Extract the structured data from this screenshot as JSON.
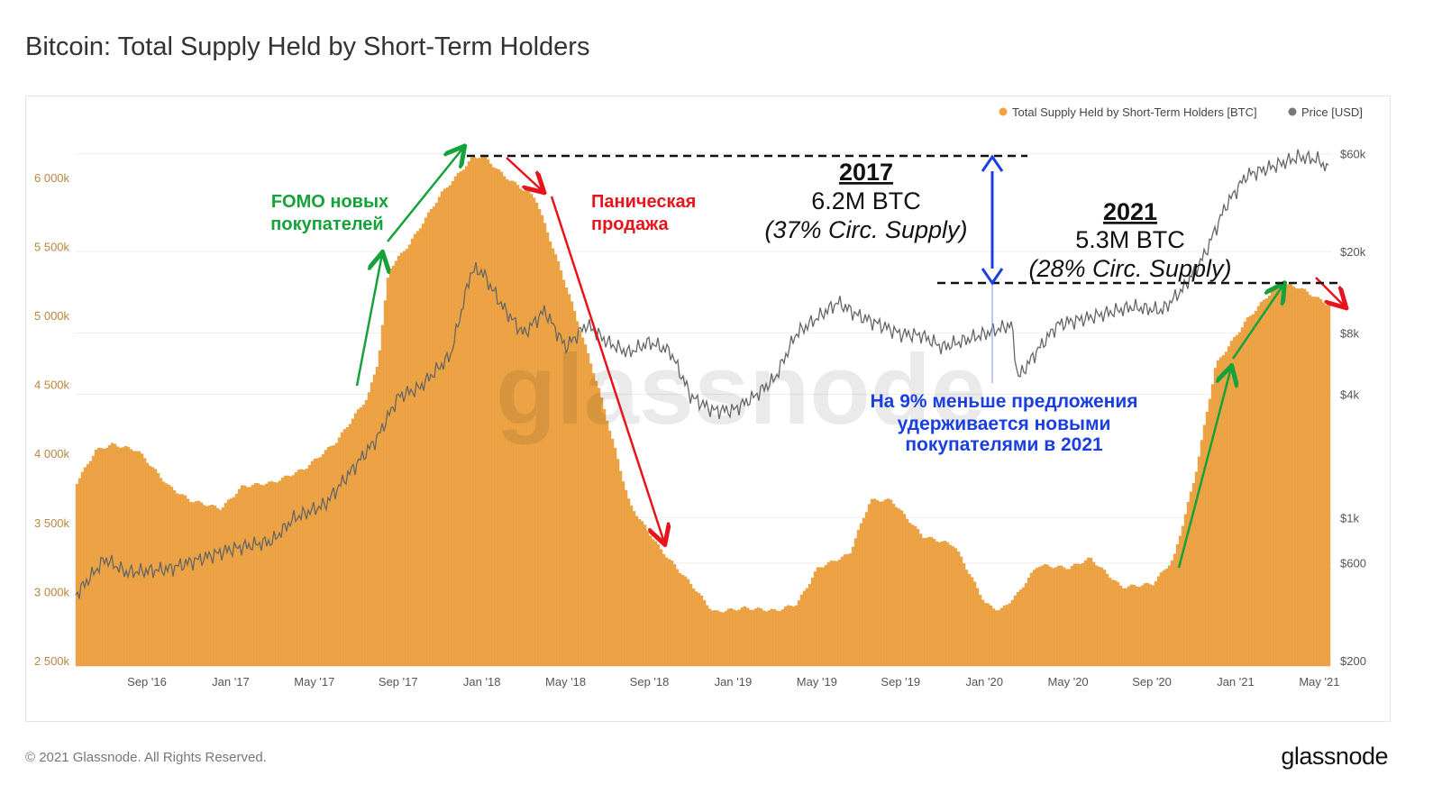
{
  "title": "Bitcoin: Total Supply Held by Short-Term Holders",
  "footer": "© 2021 Glassnode. All Rights Reserved.",
  "logo": "glassnode",
  "watermark": "glassnode",
  "chart_data": {
    "type": "bar",
    "title": "Bitcoin: Total Supply Held by Short-Term Holders",
    "x_unit": "months since Jan 2016",
    "x_ticks": [
      {
        "m": 8,
        "label": "Sep '16"
      },
      {
        "m": 12,
        "label": "Jan '17"
      },
      {
        "m": 16,
        "label": "May '17"
      },
      {
        "m": 20,
        "label": "Sep '17"
      },
      {
        "m": 24,
        "label": "Jan '18"
      },
      {
        "m": 28,
        "label": "May '18"
      },
      {
        "m": 32,
        "label": "Sep '18"
      },
      {
        "m": 36,
        "label": "Jan '19"
      },
      {
        "m": 40,
        "label": "May '19"
      },
      {
        "m": 44,
        "label": "Sep '19"
      },
      {
        "m": 48,
        "label": "Jan '20"
      },
      {
        "m": 52,
        "label": "May '20"
      },
      {
        "m": 56,
        "label": "Sep '20"
      },
      {
        "m": 60,
        "label": "Jan '21"
      },
      {
        "m": 64,
        "label": "May '21"
      }
    ],
    "x_range": [
      4.6,
      64.5
    ],
    "left_axis": {
      "label": "Total Supply Held by Short-Term Holders [BTC]",
      "range": [
        2500,
        6300
      ],
      "ticks": [
        {
          "v": 2500,
          "label": "2 500k"
        },
        {
          "v": 3000,
          "label": "3 000k"
        },
        {
          "v": 3500,
          "label": "3 500k"
        },
        {
          "v": 4000,
          "label": "4 000k"
        },
        {
          "v": 4500,
          "label": "4 500k"
        },
        {
          "v": 5000,
          "label": "5 000k"
        },
        {
          "v": 5500,
          "label": "5 500k"
        },
        {
          "v": 6000,
          "label": "6 000k"
        }
      ]
    },
    "right_axis": {
      "label": "Price [USD]",
      "scale": "log",
      "range": [
        200,
        60000
      ],
      "ticks": [
        {
          "v": 200,
          "label": "$200"
        },
        {
          "v": 600,
          "label": "$600"
        },
        {
          "v": 1000,
          "label": "$1k"
        },
        {
          "v": 4000,
          "label": "$4k"
        },
        {
          "v": 8000,
          "label": "$8k"
        },
        {
          "v": 20000,
          "label": "$20k"
        },
        {
          "v": 60000,
          "label": "$60k"
        }
      ]
    },
    "legend": {
      "position": "top-right",
      "entries": [
        {
          "name": "Total Supply Held by Short-Term Holders [BTC]",
          "color": "#f0a140"
        },
        {
          "name": "Price [USD]",
          "color": "#777777"
        }
      ]
    },
    "series": [
      {
        "name": "Total Supply Held by Short-Term Holders [BTC]",
        "unit": "k BTC",
        "color": "#eea445",
        "points": [
          [
            4.6,
            3790
          ],
          [
            5.5,
            4020
          ],
          [
            6.3,
            4065
          ],
          [
            7.5,
            4020
          ],
          [
            9,
            3760
          ],
          [
            10,
            3660
          ],
          [
            11.5,
            3600
          ],
          [
            12.5,
            3760
          ],
          [
            14,
            3790
          ],
          [
            15.5,
            3890
          ],
          [
            17,
            4085
          ],
          [
            18.5,
            4410
          ],
          [
            19,
            4670
          ],
          [
            19.5,
            5330
          ],
          [
            20.5,
            5520
          ],
          [
            22,
            5880
          ],
          [
            23.5,
            6140
          ],
          [
            24,
            6155
          ],
          [
            25,
            6010
          ],
          [
            26.5,
            5850
          ],
          [
            28,
            5200
          ],
          [
            29.5,
            4480
          ],
          [
            31,
            3630
          ],
          [
            32.5,
            3300
          ],
          [
            34,
            3040
          ],
          [
            35,
            2850
          ],
          [
            36.5,
            2880
          ],
          [
            38,
            2860
          ],
          [
            39,
            2910
          ],
          [
            40,
            3170
          ],
          [
            41.5,
            3270
          ],
          [
            42.5,
            3660
          ],
          [
            43.5,
            3660
          ],
          [
            45,
            3400
          ],
          [
            46.5,
            3335
          ],
          [
            48,
            2910
          ],
          [
            48.7,
            2860
          ],
          [
            49.5,
            2975
          ],
          [
            50.5,
            3190
          ],
          [
            52,
            3170
          ],
          [
            53,
            3240
          ],
          [
            54.5,
            3030
          ],
          [
            56,
            3055
          ],
          [
            57,
            3240
          ],
          [
            58,
            3825
          ],
          [
            59,
            4640
          ],
          [
            60.5,
            4970
          ],
          [
            62,
            5230
          ],
          [
            63,
            5200
          ],
          [
            64.5,
            5065
          ]
        ]
      },
      {
        "name": "Price [USD]",
        "unit": "USD",
        "color": "#777777",
        "points": [
          [
            4.6,
            418
          ],
          [
            6,
            630
          ],
          [
            7,
            540
          ],
          [
            9,
            560
          ],
          [
            12,
            700
          ],
          [
            14,
            770
          ],
          [
            15,
            990
          ],
          [
            16.5,
            1160
          ],
          [
            18,
            1820
          ],
          [
            19,
            2450
          ],
          [
            20,
            3900
          ],
          [
            21,
            4300
          ],
          [
            22.5,
            6200
          ],
          [
            23.5,
            16200
          ],
          [
            24,
            16000
          ],
          [
            25,
            10700
          ],
          [
            26,
            7900
          ],
          [
            27,
            10300
          ],
          [
            28,
            6800
          ],
          [
            29,
            8800
          ],
          [
            30,
            7200
          ],
          [
            31,
            6400
          ],
          [
            32,
            7200
          ],
          [
            33,
            6500
          ],
          [
            34,
            3900
          ],
          [
            35,
            3350
          ],
          [
            36,
            3350
          ],
          [
            37,
            3900
          ],
          [
            38,
            4800
          ],
          [
            39,
            7900
          ],
          [
            41,
            11300
          ],
          [
            42,
            9700
          ],
          [
            43,
            8800
          ],
          [
            44,
            7900
          ],
          [
            45,
            7800
          ],
          [
            46,
            6800
          ],
          [
            48,
            7900
          ],
          [
            49.3,
            8800
          ],
          [
            49.6,
            4800
          ],
          [
            50.5,
            6500
          ],
          [
            51.5,
            8800
          ],
          [
            53,
            9500
          ],
          [
            55,
            10700
          ],
          [
            56.5,
            10300
          ],
          [
            57.5,
            13200
          ],
          [
            58.5,
            19100
          ],
          [
            59.5,
            33000
          ],
          [
            60.5,
            47000
          ],
          [
            62,
            53000
          ],
          [
            63,
            58000
          ],
          [
            64,
            56000
          ],
          [
            64.5,
            49000
          ]
        ]
      }
    ],
    "annotations": {
      "fomo": [
        "FOMO новых",
        "покупателей"
      ],
      "panic": [
        "Паническая",
        "продажа"
      ],
      "y2017": {
        "year": "2017",
        "amount": "6.2M BTC",
        "pct": "(37% Circ. Supply)"
      },
      "y2021": {
        "year": "2021",
        "amount": "5.3M BTC",
        "pct": "(28% Circ. Supply)"
      },
      "diff": [
        "На 9% меньше предложения",
        "удерживается новыми",
        "покупателями в 2021"
      ]
    }
  }
}
